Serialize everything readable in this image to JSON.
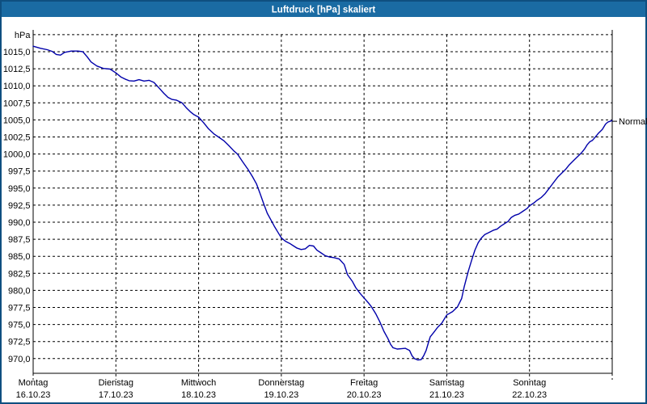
{
  "window": {
    "title": "Luftdruck [hPa] skaliert"
  },
  "colors": {
    "titlebar_bg": "#1A6BA3",
    "window_border": "#0F4F80",
    "title_text": "#FFFFFF",
    "plot_background": "#FFFFFF",
    "grid": "#000000",
    "curve": "#0000AA"
  },
  "chart_data": {
    "type": "line",
    "title": "Luftdruck [hPa] skaliert",
    "xlabel": "",
    "ylabel": "hPa",
    "grid": "dashed",
    "legend": "none",
    "ylim": [
      967.8,
      1017.5
    ],
    "xlim_days": [
      0,
      7
    ],
    "y_axis": {
      "unit": "hPa",
      "top_line_value": 1017.5,
      "step": 2.5,
      "ticks": [
        {
          "v": 1015.0,
          "label": "1015,0"
        },
        {
          "v": 1012.5,
          "label": "1012,5"
        },
        {
          "v": 1010.0,
          "label": "1010,0"
        },
        {
          "v": 1007.5,
          "label": "1007,5"
        },
        {
          "v": 1005.0,
          "label": "1005,0"
        },
        {
          "v": 1002.5,
          "label": "1002,5"
        },
        {
          "v": 1000.0,
          "label": "1000,0"
        },
        {
          "v": 997.5,
          "label": "997,5"
        },
        {
          "v": 995.0,
          "label": "995,0"
        },
        {
          "v": 992.5,
          "label": "992,5"
        },
        {
          "v": 990.0,
          "label": "990,0"
        },
        {
          "v": 987.5,
          "label": "987,5"
        },
        {
          "v": 985.0,
          "label": "985,0"
        },
        {
          "v": 982.5,
          "label": "982,5"
        },
        {
          "v": 980.0,
          "label": "980,0"
        },
        {
          "v": 977.5,
          "label": "977,5"
        },
        {
          "v": 975.0,
          "label": "975,0"
        },
        {
          "v": 972.5,
          "label": "972,5"
        },
        {
          "v": 970.0,
          "label": "970,0"
        }
      ]
    },
    "x_days": [
      {
        "name": "Montag",
        "date": "16.10.23"
      },
      {
        "name": "Dienstag",
        "date": "17.10.23"
      },
      {
        "name": "Mittwoch",
        "date": "18.10.23"
      },
      {
        "name": "Donnerstag",
        "date": "19.10.23"
      },
      {
        "name": "Freitag",
        "date": "20.10.23"
      },
      {
        "name": "Samstag",
        "date": "21.10.23"
      },
      {
        "name": "Sonntag",
        "date": "22.10.23"
      }
    ],
    "annotation": {
      "label": "Normal",
      "value": 1004.8
    },
    "series": [
      {
        "name": "Luftdruck",
        "color": "#0000AA",
        "points": [
          [
            0.0,
            1015.8
          ],
          [
            0.09,
            1015.5
          ],
          [
            0.17,
            1015.3
          ],
          [
            0.23,
            1015.05
          ],
          [
            0.28,
            1014.6
          ],
          [
            0.33,
            1014.5
          ],
          [
            0.38,
            1014.9
          ],
          [
            0.46,
            1015.1
          ],
          [
            0.54,
            1015.1
          ],
          [
            0.6,
            1015.0
          ],
          [
            0.65,
            1014.3
          ],
          [
            0.7,
            1013.5
          ],
          [
            0.77,
            1012.9
          ],
          [
            0.85,
            1012.55
          ],
          [
            0.93,
            1012.45
          ],
          [
            1.0,
            1011.9
          ],
          [
            1.06,
            1011.3
          ],
          [
            1.11,
            1011.0
          ],
          [
            1.16,
            1010.75
          ],
          [
            1.22,
            1010.7
          ],
          [
            1.28,
            1010.9
          ],
          [
            1.34,
            1010.7
          ],
          [
            1.4,
            1010.8
          ],
          [
            1.46,
            1010.5
          ],
          [
            1.52,
            1009.7
          ],
          [
            1.58,
            1008.9
          ],
          [
            1.63,
            1008.3
          ],
          [
            1.68,
            1008.0
          ],
          [
            1.73,
            1007.9
          ],
          [
            1.8,
            1007.5
          ],
          [
            1.85,
            1006.8
          ],
          [
            1.9,
            1006.2
          ],
          [
            1.94,
            1005.8
          ],
          [
            2.0,
            1005.4
          ],
          [
            2.06,
            1004.6
          ],
          [
            2.12,
            1003.7
          ],
          [
            2.19,
            1002.9
          ],
          [
            2.24,
            1002.5
          ],
          [
            2.31,
            1001.9
          ],
          [
            2.36,
            1001.3
          ],
          [
            2.43,
            1000.4
          ],
          [
            2.47,
            1000.0
          ],
          [
            2.53,
            998.9
          ],
          [
            2.6,
            997.7
          ],
          [
            2.65,
            996.7
          ],
          [
            2.7,
            995.6
          ],
          [
            2.74,
            994.3
          ],
          [
            2.79,
            992.6
          ],
          [
            2.83,
            991.3
          ],
          [
            2.88,
            990.2
          ],
          [
            2.92,
            989.3
          ],
          [
            2.96,
            988.5
          ],
          [
            3.0,
            987.7
          ],
          [
            3.05,
            987.2
          ],
          [
            3.1,
            986.9
          ],
          [
            3.15,
            986.5
          ],
          [
            3.19,
            986.2
          ],
          [
            3.24,
            986.0
          ],
          [
            3.29,
            986.1
          ],
          [
            3.34,
            986.6
          ],
          [
            3.39,
            986.5
          ],
          [
            3.43,
            985.9
          ],
          [
            3.48,
            985.5
          ],
          [
            3.53,
            985.1
          ],
          [
            3.58,
            984.9
          ],
          [
            3.64,
            984.8
          ],
          [
            3.7,
            984.6
          ],
          [
            3.76,
            983.8
          ],
          [
            3.8,
            982.3
          ],
          [
            3.86,
            981.3
          ],
          [
            3.9,
            980.4
          ],
          [
            3.95,
            979.6
          ],
          [
            4.0,
            978.9
          ],
          [
            4.05,
            978.2
          ],
          [
            4.09,
            977.6
          ],
          [
            4.14,
            976.6
          ],
          [
            4.19,
            975.4
          ],
          [
            4.24,
            974.0
          ],
          [
            4.29,
            972.9
          ],
          [
            4.32,
            972.1
          ],
          [
            4.35,
            971.6
          ],
          [
            4.4,
            971.4
          ],
          [
            4.45,
            971.45
          ],
          [
            4.5,
            971.5
          ],
          [
            4.55,
            971.2
          ],
          [
            4.58,
            970.4
          ],
          [
            4.61,
            970.0
          ],
          [
            4.65,
            969.8
          ],
          [
            4.69,
            969.85
          ],
          [
            4.72,
            970.4
          ],
          [
            4.75,
            971.2
          ],
          [
            4.78,
            972.4
          ],
          [
            4.8,
            973.2
          ],
          [
            4.84,
            973.8
          ],
          [
            4.89,
            974.6
          ],
          [
            4.94,
            975.2
          ],
          [
            5.0,
            976.4
          ],
          [
            5.07,
            976.9
          ],
          [
            5.13,
            977.6
          ],
          [
            5.18,
            978.8
          ],
          [
            5.21,
            980.5
          ],
          [
            5.26,
            982.8
          ],
          [
            5.3,
            984.4
          ],
          [
            5.34,
            985.9
          ],
          [
            5.38,
            987.0
          ],
          [
            5.42,
            987.7
          ],
          [
            5.46,
            988.2
          ],
          [
            5.51,
            988.5
          ],
          [
            5.56,
            988.8
          ],
          [
            5.61,
            989.0
          ],
          [
            5.65,
            989.4
          ],
          [
            5.7,
            989.8
          ],
          [
            5.74,
            990.1
          ],
          [
            5.78,
            990.7
          ],
          [
            5.82,
            991.0
          ],
          [
            5.87,
            991.2
          ],
          [
            5.92,
            991.6
          ],
          [
            5.97,
            992.0
          ],
          [
            6.0,
            992.4
          ],
          [
            6.05,
            992.8
          ],
          [
            6.09,
            993.2
          ],
          [
            6.14,
            993.6
          ],
          [
            6.19,
            994.2
          ],
          [
            6.24,
            995.0
          ],
          [
            6.29,
            995.8
          ],
          [
            6.34,
            996.6
          ],
          [
            6.39,
            997.2
          ],
          [
            6.44,
            997.8
          ],
          [
            6.48,
            998.4
          ],
          [
            6.53,
            999.0
          ],
          [
            6.58,
            999.6
          ],
          [
            6.63,
            1000.2
          ],
          [
            6.67,
            1000.8
          ],
          [
            6.7,
            1001.4
          ],
          [
            6.73,
            1001.8
          ],
          [
            6.76,
            1002.0
          ],
          [
            6.79,
            1002.4
          ],
          [
            6.83,
            1003.0
          ],
          [
            6.88,
            1003.6
          ],
          [
            6.92,
            1004.4
          ],
          [
            6.95,
            1004.7
          ],
          [
            7.0,
            1004.9
          ]
        ]
      }
    ]
  }
}
